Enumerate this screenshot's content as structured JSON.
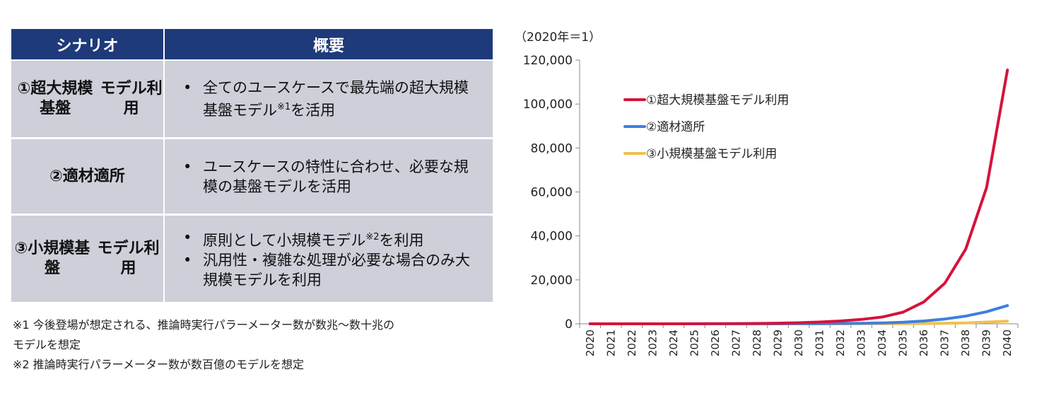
{
  "table": {
    "headers": [
      "シナリオ",
      "概要"
    ],
    "header_color": "#1f3a7a",
    "row_color": "#cdd0d9",
    "rows": [
      {
        "scenario_lines": [
          "①超大規模基盤",
          "モデル利用"
        ],
        "bullets": [
          {
            "text": "全てのユースケースで最先端の超大規模基盤モデル",
            "sup": "※1",
            "after": "を活用"
          }
        ]
      },
      {
        "scenario_lines": [
          "②適材適所"
        ],
        "bullets": [
          {
            "text": "ユースケースの特性に合わせ、必要な規模の基盤モデルを活用",
            "sup": "",
            "after": ""
          }
        ]
      },
      {
        "scenario_lines": [
          "③小規模基盤",
          "モデル利用"
        ],
        "bullets": [
          {
            "text": "原則として小規模モデル",
            "sup": "※2",
            "after": "を利用"
          },
          {
            "text": "汎用性・複雑な処理が必要な場合のみ大規模モデルを利用",
            "sup": "",
            "after": ""
          }
        ]
      }
    ],
    "bullet_mark": "•"
  },
  "notes": [
    "※1 今後登場が想定される、推論時実行パラーメーター数が数兆～数十兆の",
    "モデルを想定",
    "※2 推論時実行パラーメーター数が数百億のモデルを想定"
  ],
  "chart_data": {
    "type": "line",
    "unit_label": "（2020年＝1）",
    "x": [
      "2020",
      "2021",
      "2022",
      "2023",
      "2024",
      "2025",
      "2026",
      "2027",
      "2028",
      "2029",
      "2030",
      "2031",
      "2032",
      "2033",
      "2034",
      "2035",
      "2036",
      "2037",
      "2038",
      "2039",
      "2040"
    ],
    "ylim": [
      0,
      120000
    ],
    "yticks": [
      0,
      20000,
      40000,
      60000,
      80000,
      100000,
      120000
    ],
    "ytick_labels": [
      "0",
      "20,000",
      "40,000",
      "60,000",
      "80,000",
      "100,000",
      "120,000"
    ],
    "grid": false,
    "legend_position": "top-left",
    "series": [
      {
        "name": "①超大規模基盤モデル利用",
        "color": "#d4143c",
        "values": [
          1,
          2,
          4,
          8,
          15,
          28,
          50,
          90,
          160,
          280,
          480,
          800,
          1300,
          2000,
          3100,
          5300,
          10000,
          18500,
          34000,
          62000,
          115500
        ]
      },
      {
        "name": "②適材適所",
        "color": "#3f7fe0",
        "values": [
          1,
          1,
          2,
          3,
          5,
          8,
          12,
          20,
          30,
          45,
          70,
          110,
          170,
          260,
          420,
          700,
          1300,
          2200,
          3500,
          5500,
          8300
        ]
      },
      {
        "name": "③小規模基盤モデル利用",
        "color": "#f0c050",
        "values": [
          1,
          1,
          1,
          2,
          2,
          3,
          4,
          6,
          8,
          11,
          15,
          20,
          28,
          40,
          60,
          90,
          140,
          220,
          400,
          800,
          1200
        ]
      }
    ]
  }
}
